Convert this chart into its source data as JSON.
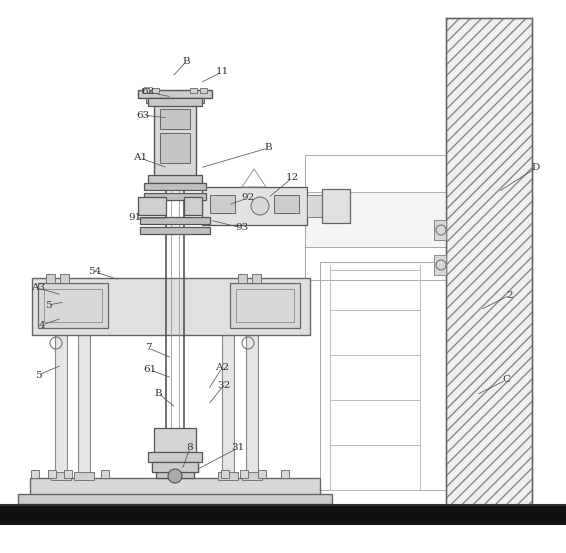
{
  "bg": "#ffffff",
  "lc": "#777777",
  "dc": "#444444",
  "fc_light": "#e8e8e8",
  "fc_med": "#d8d8d8",
  "fc_dark": "#cccccc",
  "wall_fc": "#eeeeee",
  "fig_w": 5.66,
  "fig_h": 5.53,
  "dpi": 100,
  "labels": [
    [
      "B",
      186,
      62,
      172,
      77
    ],
    [
      "11",
      222,
      72,
      200,
      83
    ],
    [
      "62",
      148,
      92,
      172,
      97
    ],
    [
      "63",
      143,
      115,
      168,
      118
    ],
    [
      "B",
      268,
      148,
      200,
      168
    ],
    [
      "A1",
      140,
      158,
      168,
      168
    ],
    [
      "92",
      248,
      198,
      228,
      205
    ],
    [
      "12",
      292,
      178,
      268,
      198
    ],
    [
      "91",
      135,
      218,
      168,
      218
    ],
    [
      "93",
      242,
      228,
      210,
      220
    ],
    [
      "54",
      95,
      272,
      120,
      280
    ],
    [
      "A3",
      38,
      288,
      62,
      295
    ],
    [
      "5",
      48,
      305,
      65,
      302
    ],
    [
      "4",
      42,
      325,
      62,
      318
    ],
    [
      "5",
      38,
      375,
      62,
      365
    ],
    [
      "7",
      148,
      348,
      172,
      358
    ],
    [
      "61",
      150,
      370,
      172,
      378
    ],
    [
      "B",
      158,
      393,
      176,
      408
    ],
    [
      "A2",
      222,
      368,
      208,
      390
    ],
    [
      "32",
      224,
      385,
      208,
      405
    ],
    [
      "8",
      190,
      448,
      182,
      470
    ],
    [
      "31",
      238,
      448,
      196,
      470
    ],
    [
      "2",
      510,
      295,
      480,
      310
    ],
    [
      "C",
      506,
      380,
      476,
      395
    ],
    [
      "D",
      536,
      168,
      498,
      192
    ]
  ]
}
